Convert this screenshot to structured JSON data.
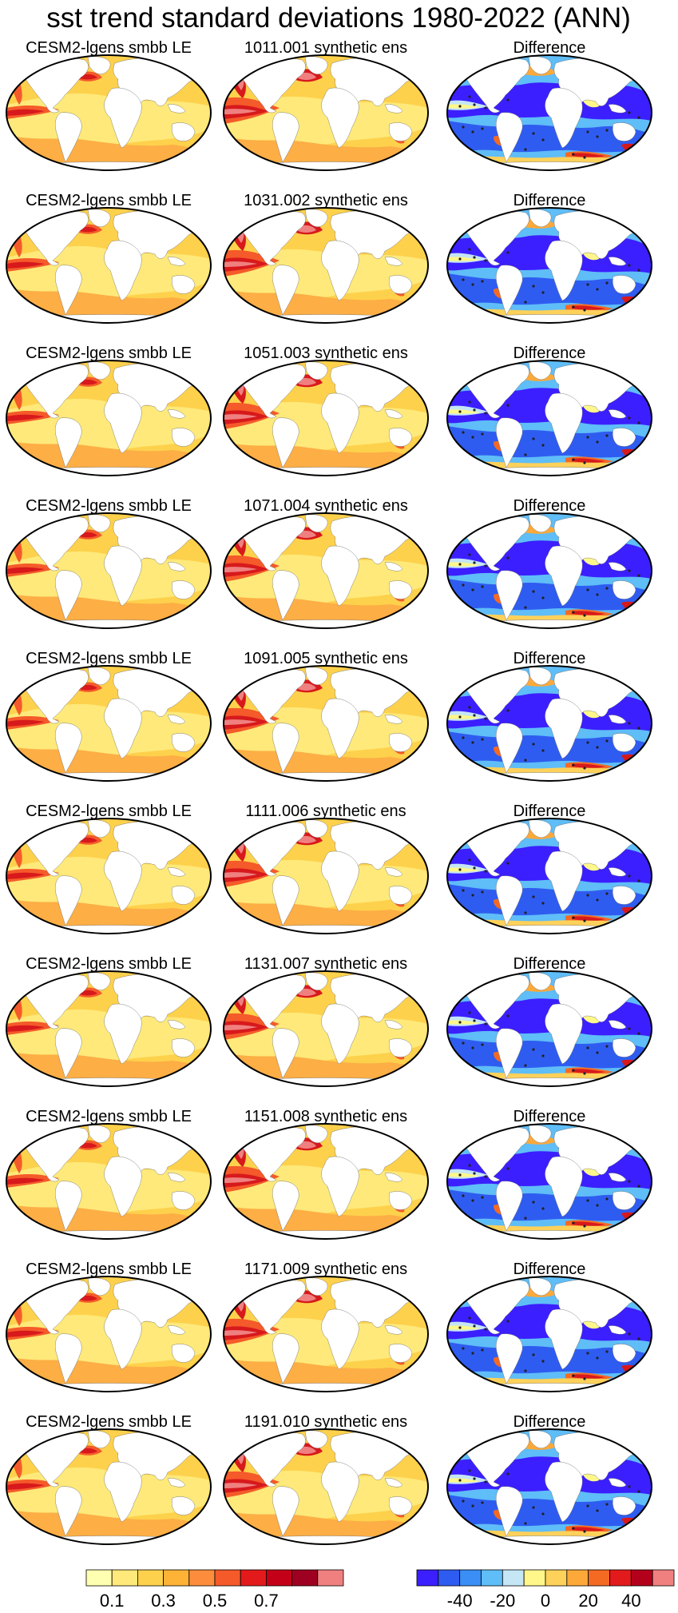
{
  "title": "sst trend standard deviations 1980-2022 (ANN)",
  "rows": [
    {
      "left": "CESM2-lgens smbb LE",
      "middle": "1011.001 synthetic ens",
      "right": "Difference"
    },
    {
      "left": "CESM2-lgens smbb LE",
      "middle": "1031.002 synthetic ens",
      "right": "Difference"
    },
    {
      "left": "CESM2-lgens smbb LE",
      "middle": "1051.003 synthetic ens",
      "right": "Difference"
    },
    {
      "left": "CESM2-lgens smbb LE",
      "middle": "1071.004 synthetic ens",
      "right": "Difference"
    },
    {
      "left": "CESM2-lgens smbb LE",
      "middle": "1091.005 synthetic ens",
      "right": "Difference"
    },
    {
      "left": "CESM2-lgens smbb LE",
      "middle": "1111.006 synthetic ens",
      "right": "Difference"
    },
    {
      "left": "CESM2-lgens smbb LE",
      "middle": "1131.007 synthetic ens",
      "right": "Difference"
    },
    {
      "left": "CESM2-lgens smbb LE",
      "middle": "1151.008 synthetic ens",
      "right": "Difference"
    },
    {
      "left": "CESM2-lgens smbb LE",
      "middle": "1171.009 synthetic ens",
      "right": "Difference"
    },
    {
      "left": "CESM2-lgens smbb LE",
      "middle": "1191.010 synthetic ens",
      "right": "Difference"
    }
  ],
  "colorbars": {
    "left": {
      "tick_labels": [
        "0.1",
        "0.3",
        "0.5",
        "0.7"
      ],
      "colors": [
        "#ffffb2",
        "#fee97a",
        "#fed14c",
        "#feb236",
        "#fd8d3c",
        "#f55a2a",
        "#e31a1c",
        "#c40018",
        "#9e0022",
        "#f08080"
      ]
    },
    "right": {
      "tick_labels": [
        "-40",
        "-20",
        "0",
        "20",
        "40"
      ],
      "colors": [
        "#3b1fff",
        "#2f5cf0",
        "#3a8ef5",
        "#5fbdf7",
        "#c4e6f5",
        "#fff78a",
        "#fed15a",
        "#fca93a",
        "#f56a23",
        "#e31a1c",
        "#b3001b",
        "#f08080"
      ]
    }
  },
  "map_colors": {
    "ocean_base": "#fed14c",
    "low": "#fee97a",
    "mid": "#fdae45",
    "high": "#f55a2a",
    "very_high": "#d7191c",
    "peak": "#f08080",
    "land": "#ffffff",
    "diff_neg": "#3b1fff",
    "diff_neg_light": "#5fbdf7",
    "diff_pos": "#f56a23",
    "diff_pos_strong": "#d7191c"
  }
}
